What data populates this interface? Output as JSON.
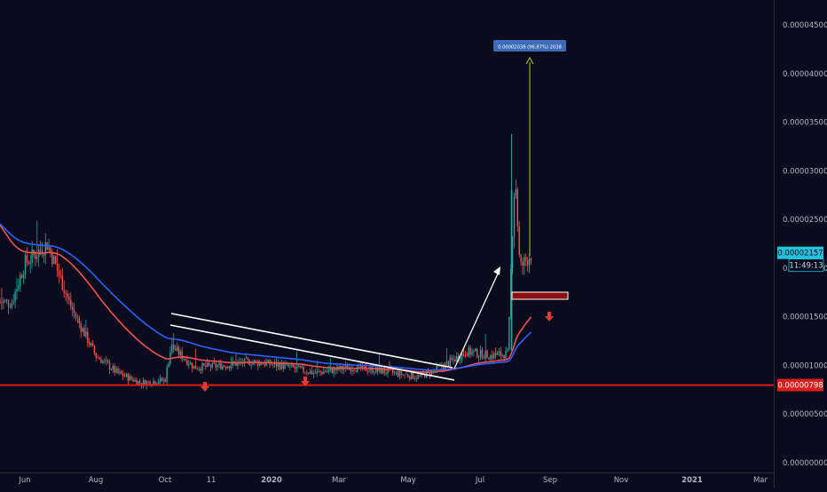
{
  "colors": {
    "background": "#0b0b1e",
    "axis_text": "#b2b5be",
    "up_candle": "#26a69a",
    "down_candle": "#ef5350",
    "ema_fast": "#ef5350",
    "ema_slow": "#2962ff",
    "support_line": "#e01818",
    "price_badge": "#22c1dc",
    "support_badge": "#d91e1e",
    "measure_line": "#c8c81e",
    "measure_label_bg": "#3d6bb8",
    "trendline": "#ffffff",
    "zone_fill": "#8b0f12",
    "arrow_red": "#e53935"
  },
  "chart_data": {
    "type": "candlestick",
    "title": "",
    "xlabel": "",
    "ylabel": "",
    "x_ticks": [
      "Jun",
      "Aug",
      "Oct",
      "11",
      "2020",
      "Mar",
      "May",
      "Jul",
      "Sep",
      "Nov",
      "2021",
      "Mar"
    ],
    "x_range_months": [
      "2019-05",
      "2021-03"
    ],
    "y_ticks": [
      "0.00004500",
      "0.00004000",
      "0.00003500",
      "0.00003000",
      "0.00002500",
      "0.00002000",
      "0.00001500",
      "0.00001000",
      "0.00000500",
      "0.00000000"
    ],
    "ylim": [
      0.0,
      4.55e-05
    ],
    "current_price": "0.00002157",
    "countdown": "11:49:13",
    "support_level": "0.00000798",
    "measure_label": "0.00002038 (96.87%) 2038",
    "grid": false,
    "approx_price_path": [
      [
        "2019-05-20",
        1.65e-05
      ],
      [
        "2019-06-01",
        2.05e-05
      ],
      [
        "2019-06-20",
        2.25e-05
      ],
      [
        "2019-07-01",
        1.9e-05
      ],
      [
        "2019-07-10",
        1.6e-05
      ],
      [
        "2019-08-01",
        1.1e-05
      ],
      [
        "2019-08-20",
        9.2e-06
      ],
      [
        "2019-09-10",
        8.2e-06
      ],
      [
        "2019-10-01",
        8.5e-06
      ],
      [
        "2019-10-05",
        1.2e-05
      ],
      [
        "2019-10-20",
        9.8e-06
      ],
      [
        "2019-11-15",
        1e-05
      ],
      [
        "2019-12-10",
        1.04e-05
      ],
      [
        "2020-01-10",
        1e-05
      ],
      [
        "2020-02-10",
        9.2e-06
      ],
      [
        "2020-03-10",
        9.8e-06
      ],
      [
        "2020-04-10",
        9.4e-06
      ],
      [
        "2020-05-10",
        8.8e-06
      ],
      [
        "2020-06-01",
        1e-05
      ],
      [
        "2020-06-20",
        1.14e-05
      ],
      [
        "2020-07-10",
        1.1e-05
      ],
      [
        "2020-07-25",
        1.12e-05
      ],
      [
        "2020-07-28",
        2.2e-05
      ],
      [
        "2020-08-01",
        3e-05
      ],
      [
        "2020-08-05",
        2e-05
      ],
      [
        "2020-08-15",
        2.15e-05
      ]
    ]
  }
}
